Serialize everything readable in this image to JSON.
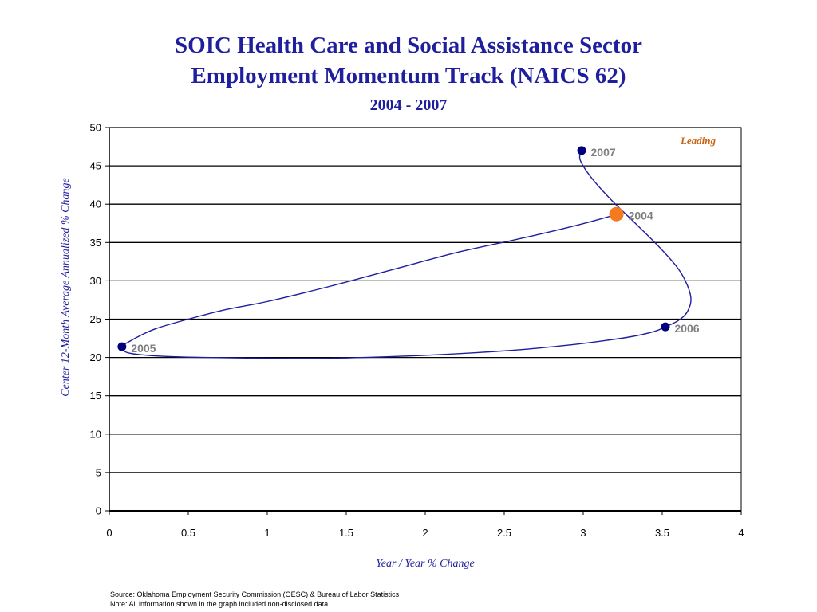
{
  "header": {
    "title_line1": "SOIC Health Care and Social Assistance Sector",
    "title_line2": "Employment Momentum Track (NAICS 62)",
    "subtitle": "2004 - 2007"
  },
  "chart_data": {
    "type": "line",
    "title": "SOIC Health Care and Social Assistance Sector Employment Momentum Track (NAICS 62)",
    "subtitle": "2004 - 2007",
    "xlabel": "Year / Year % Change",
    "ylabel": "Center 12-Month Average Annualized  %  Change",
    "xlim": [
      0,
      4
    ],
    "ylim": [
      0,
      50
    ],
    "x_ticks": [
      0,
      0.5,
      1,
      1.5,
      2,
      2.5,
      3,
      3.5,
      4
    ],
    "x_tick_labels": [
      "0",
      "0.5",
      "1",
      "1.5",
      "2",
      "2.5",
      "3",
      "3.5",
      "4"
    ],
    "y_ticks": [
      0,
      5,
      10,
      15,
      20,
      25,
      30,
      35,
      40,
      45,
      50
    ],
    "y_tick_labels": [
      "0",
      "5",
      "10",
      "15",
      "20",
      "25",
      "30",
      "35",
      "40",
      "45",
      "50"
    ],
    "grid": "horizontal",
    "quadrant_label": "Leading",
    "track": [
      {
        "x": 3.21,
        "y": 38.7
      },
      {
        "x": 3.15,
        "y": 38.3
      },
      {
        "x": 2.95,
        "y": 37.2
      },
      {
        "x": 2.6,
        "y": 35.5
      },
      {
        "x": 2.2,
        "y": 33.7
      },
      {
        "x": 1.8,
        "y": 31.5
      },
      {
        "x": 1.4,
        "y": 29.3
      },
      {
        "x": 1.0,
        "y": 27.3
      },
      {
        "x": 0.75,
        "y": 26.3
      },
      {
        "x": 0.5,
        "y": 25.0
      },
      {
        "x": 0.3,
        "y": 23.8
      },
      {
        "x": 0.2,
        "y": 22.9
      },
      {
        "x": 0.12,
        "y": 22.0
      },
      {
        "x": 0.08,
        "y": 21.4
      },
      {
        "x": 0.12,
        "y": 20.6
      },
      {
        "x": 0.3,
        "y": 20.2
      },
      {
        "x": 0.6,
        "y": 20.0
      },
      {
        "x": 1.0,
        "y": 19.9
      },
      {
        "x": 1.4,
        "y": 19.9
      },
      {
        "x": 1.9,
        "y": 20.2
      },
      {
        "x": 2.3,
        "y": 20.6
      },
      {
        "x": 2.65,
        "y": 21.1
      },
      {
        "x": 2.9,
        "y": 21.6
      },
      {
        "x": 3.1,
        "y": 22.1
      },
      {
        "x": 3.3,
        "y": 22.7
      },
      {
        "x": 3.45,
        "y": 23.4
      },
      {
        "x": 3.52,
        "y": 24.0
      },
      {
        "x": 3.6,
        "y": 24.8
      },
      {
        "x": 3.66,
        "y": 26.0
      },
      {
        "x": 3.68,
        "y": 28.0
      },
      {
        "x": 3.62,
        "y": 31.0
      },
      {
        "x": 3.5,
        "y": 34.0
      },
      {
        "x": 3.33,
        "y": 37.5
      },
      {
        "x": 3.18,
        "y": 40.5
      },
      {
        "x": 3.05,
        "y": 43.5
      },
      {
        "x": 2.98,
        "y": 45.8
      },
      {
        "x": 2.99,
        "y": 47.0
      }
    ],
    "points": [
      {
        "label": "2004",
        "x": 3.21,
        "y": 38.7,
        "color": "#f47a20",
        "marker": "large"
      },
      {
        "label": "2005",
        "x": 0.08,
        "y": 21.4,
        "color": "#00007f",
        "marker": "small"
      },
      {
        "label": "2006",
        "x": 3.52,
        "y": 24.0,
        "color": "#00007f",
        "marker": "small"
      },
      {
        "label": "2007",
        "x": 2.99,
        "y": 47.0,
        "color": "#00007f",
        "marker": "small"
      }
    ],
    "colors": {
      "line": "#1f1f9e",
      "point_label": "#7f7f7f",
      "axis_title": "#1f1f9e",
      "quadrant_label": "#c86414"
    }
  },
  "footer": {
    "source": "Source:  Oklahoma Employment Security Commission (OESC) & Bureau of Labor Statistics",
    "note": "Note: All information shown in the graph included non-disclosed data."
  }
}
